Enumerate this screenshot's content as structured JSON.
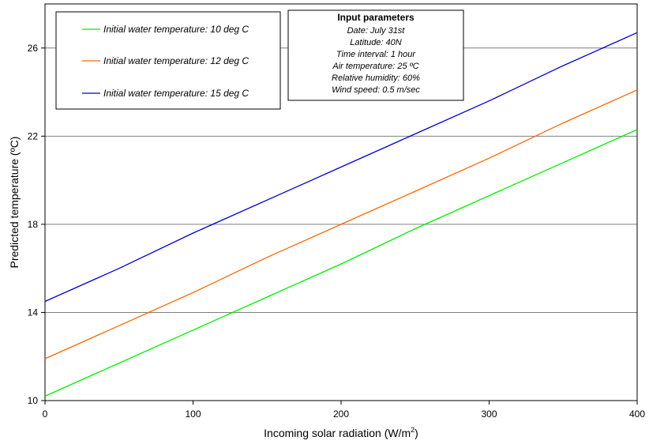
{
  "chart_data": {
    "type": "line",
    "xlabel": "Incoming solar radiation (W/m",
    "xlabel_sup": "2",
    "xlabel_end": ")",
    "ylabel": "Predicted temperature (ºC)",
    "xlim": [
      0,
      400
    ],
    "ylim": [
      10,
      28
    ],
    "x_ticks": [
      0,
      100,
      200,
      300,
      400
    ],
    "x_tick_labels": [
      "0",
      "100",
      "200",
      "300",
      "400"
    ],
    "y_ticks": [
      10,
      14,
      18,
      22,
      26
    ],
    "y_tick_labels": [
      "10",
      "14",
      "18",
      "22",
      "26"
    ],
    "grid": "horizontal",
    "legend_position": "top-left",
    "x": [
      0,
      50,
      100,
      150,
      200,
      250,
      300,
      350,
      400
    ],
    "series": [
      {
        "name": "Initial water temperature: 10 deg C",
        "color": "#00ee00",
        "values": [
          10.2,
          11.7,
          13.2,
          14.7,
          16.2,
          17.8,
          19.3,
          20.8,
          22.3
        ]
      },
      {
        "name": "Initial water temperature: 12 deg C",
        "color": "#ff6600",
        "values": [
          11.9,
          13.4,
          14.9,
          16.5,
          18.0,
          19.5,
          21.0,
          22.6,
          24.1
        ]
      },
      {
        "name": "Initial water temperature: 15 deg C",
        "color": "#0000cc",
        "values": [
          14.5,
          16.0,
          17.6,
          19.1,
          20.6,
          22.1,
          23.6,
          25.2,
          26.7
        ]
      }
    ],
    "parameters_box": {
      "title": "Input parameters",
      "lines": [
        "Date: July 31st",
        "Latitude: 40N",
        "Time interval: 1 hour",
        "Air temperature: 25 ºC",
        "Relative humidity: 60%",
        "Wind speed: 0.5 m/sec"
      ]
    }
  }
}
